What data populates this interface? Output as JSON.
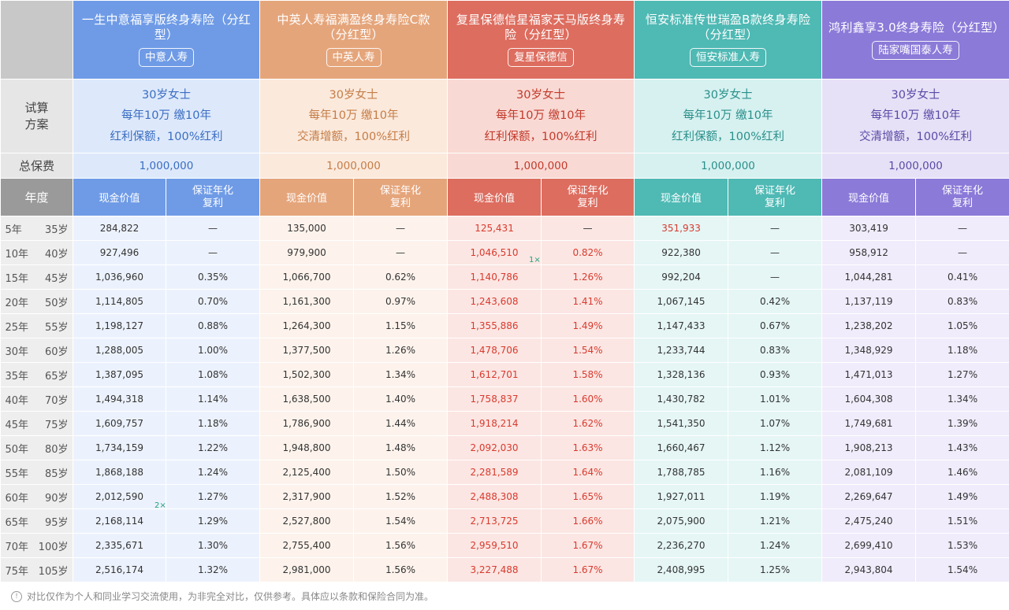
{
  "corner": "",
  "products": [
    {
      "name": "一生中意福享版终身寿险（分红型）",
      "company": "中意人寿",
      "plan": [
        "30岁女士",
        "每年10万 缴10年",
        "红利保额，100%红利"
      ],
      "total": "1,000,000"
    },
    {
      "name": "中英人寿福满盈终身寿险C款（分红型）",
      "company": "中英人寿",
      "plan": [
        "30岁女士",
        "每年10万 缴10年",
        "交清增额，100%红利"
      ],
      "total": "1,000,000"
    },
    {
      "name": "复星保德信星福家天马版终身寿险（分红型）",
      "company": "复星保德信",
      "plan": [
        "30岁女士",
        "每年10万 缴10年",
        "红利保额，100%红利"
      ],
      "total": "1,000,000"
    },
    {
      "name": "恒安标准传世瑞盈B款终身寿险（分红型）",
      "company": "恒安标准人寿",
      "plan": [
        "30岁女士",
        "每年10万 缴10年",
        "红利保额，100%红利"
      ],
      "total": "1,000,000"
    },
    {
      "name": "鸿利鑫享3.0终身寿险（分红型）",
      "company": "陆家嘴国泰人寿",
      "plan": [
        "30岁女士",
        "每年10万 缴10年",
        "交清增额，100%红利"
      ],
      "total": "1,000,000"
    }
  ],
  "labels": {
    "plan": "试算方案",
    "total": "总保费",
    "year": "年度",
    "cash": "现金价值",
    "guarantee": "保证年化复利"
  },
  "rows": [
    {
      "yr": "5年",
      "age": "35岁",
      "v": [
        "284,822",
        "—",
        "135,000",
        "—",
        "125,431",
        "—",
        "351,933",
        "—",
        "303,419",
        "—"
      ]
    },
    {
      "yr": "10年",
      "age": "40岁",
      "v": [
        "927,496",
        "—",
        "979,900",
        "—",
        "1,046,510",
        "0.82%",
        "922,380",
        "—",
        "958,912",
        "—"
      ]
    },
    {
      "yr": "15年",
      "age": "45岁",
      "v": [
        "1,036,960",
        "0.35%",
        "1,066,700",
        "0.62%",
        "1,140,786",
        "1.26%",
        "992,204",
        "—",
        "1,044,281",
        "0.41%"
      ]
    },
    {
      "yr": "20年",
      "age": "50岁",
      "v": [
        "1,114,805",
        "0.70%",
        "1,161,300",
        "0.97%",
        "1,243,608",
        "1.41%",
        "1,067,145",
        "0.42%",
        "1,137,119",
        "0.83%"
      ]
    },
    {
      "yr": "25年",
      "age": "55岁",
      "v": [
        "1,198,127",
        "0.88%",
        "1,264,300",
        "1.15%",
        "1,355,886",
        "1.49%",
        "1,147,433",
        "0.67%",
        "1,238,202",
        "1.05%"
      ]
    },
    {
      "yr": "30年",
      "age": "60岁",
      "v": [
        "1,288,005",
        "1.00%",
        "1,377,500",
        "1.26%",
        "1,478,706",
        "1.54%",
        "1,233,744",
        "0.83%",
        "1,348,929",
        "1.18%"
      ]
    },
    {
      "yr": "35年",
      "age": "65岁",
      "v": [
        "1,387,095",
        "1.08%",
        "1,502,300",
        "1.34%",
        "1,612,701",
        "1.58%",
        "1,328,136",
        "0.93%",
        "1,471,013",
        "1.27%"
      ]
    },
    {
      "yr": "40年",
      "age": "70岁",
      "v": [
        "1,494,318",
        "1.14%",
        "1,638,500",
        "1.40%",
        "1,758,837",
        "1.60%",
        "1,430,782",
        "1.01%",
        "1,604,308",
        "1.34%"
      ]
    },
    {
      "yr": "45年",
      "age": "75岁",
      "v": [
        "1,609,757",
        "1.18%",
        "1,786,900",
        "1.44%",
        "1,918,214",
        "1.62%",
        "1,541,350",
        "1.07%",
        "1,749,681",
        "1.39%"
      ]
    },
    {
      "yr": "50年",
      "age": "80岁",
      "v": [
        "1,734,159",
        "1.22%",
        "1,948,800",
        "1.48%",
        "2,092,030",
        "1.63%",
        "1,660,467",
        "1.12%",
        "1,908,213",
        "1.43%"
      ]
    },
    {
      "yr": "55年",
      "age": "85岁",
      "v": [
        "1,868,188",
        "1.24%",
        "2,125,400",
        "1.50%",
        "2,281,589",
        "1.64%",
        "1,788,785",
        "1.16%",
        "2,081,109",
        "1.46%"
      ]
    },
    {
      "yr": "60年",
      "age": "90岁",
      "v": [
        "2,012,590",
        "1.27%",
        "2,317,900",
        "1.52%",
        "2,488,308",
        "1.65%",
        "1,927,011",
        "1.19%",
        "2,269,647",
        "1.49%"
      ]
    },
    {
      "yr": "65年",
      "age": "95岁",
      "v": [
        "2,168,114",
        "1.29%",
        "2,527,800",
        "1.54%",
        "2,713,725",
        "1.66%",
        "2,075,900",
        "1.21%",
        "2,475,240",
        "1.51%"
      ]
    },
    {
      "yr": "70年",
      "age": "100岁",
      "v": [
        "2,335,671",
        "1.30%",
        "2,755,400",
        "1.56%",
        "2,959,510",
        "1.67%",
        "2,236,270",
        "1.24%",
        "2,699,410",
        "1.53%"
      ]
    },
    {
      "yr": "75年",
      "age": "105岁",
      "v": [
        "2,516,174",
        "1.32%",
        "2,981,000",
        "1.56%",
        "3,227,488",
        "1.67%",
        "2,408,995",
        "1.25%",
        "2,943,804",
        "1.54%"
      ]
    }
  ],
  "marks": {
    "m1": "1×",
    "m2": "2×"
  },
  "footer": "对比仅作为个人和同业学习交流使用，为非完全对比，仅供参考。具体应以条款和保险合同为准。",
  "colors": {
    "zhongyi": "#6f9be6",
    "zhongying": "#e5a57b",
    "fuxing": "#dd6d5f",
    "hengan": "#4fb9b4",
    "hongli": "#8b7ad8",
    "highlight_red": "#d93a2e"
  }
}
